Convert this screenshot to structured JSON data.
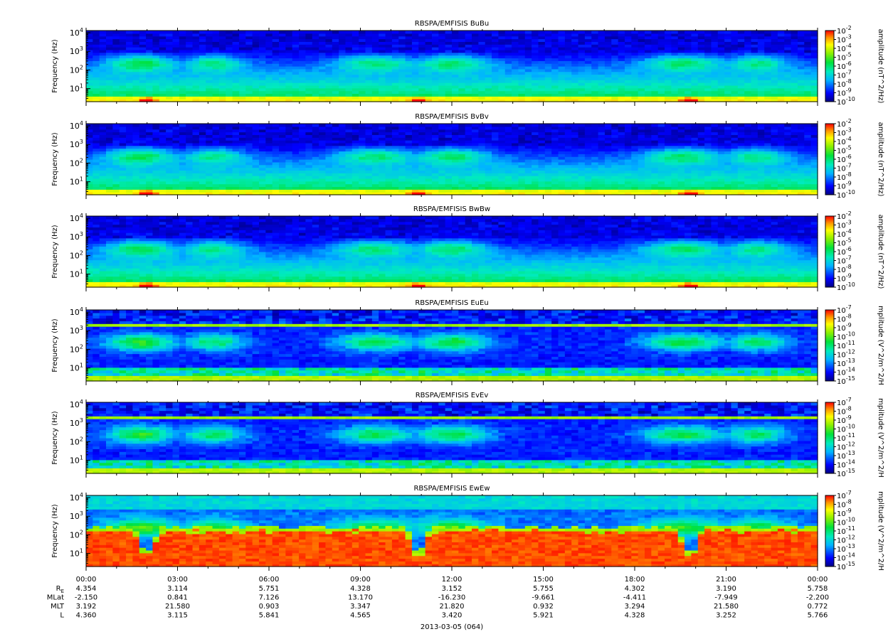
{
  "chart_data": {
    "type": "heatmap",
    "date_label": "2013-03-05 (064)",
    "x_ticks": [
      "00:00",
      "03:00",
      "06:00",
      "09:00",
      "12:00",
      "15:00",
      "18:00",
      "21:00",
      "00:00"
    ],
    "frequency_axis": {
      "label": "Frequency (Hz)",
      "scale": "log",
      "range": [
        2,
        13000
      ],
      "ticks": [
        {
          "value": 10,
          "exp": "1"
        },
        {
          "value": 100,
          "exp": "2"
        },
        {
          "value": 1000,
          "exp": "3"
        },
        {
          "value": 10000,
          "exp": "4"
        }
      ]
    },
    "ephemeris": [
      {
        "label": "R",
        "sub": "E",
        "values": [
          "4.354",
          "3.114",
          "5.751",
          "4.328",
          "3.152",
          "5.755",
          "4.302",
          "3.190",
          "5.758"
        ]
      },
      {
        "label": "MLat",
        "sub": "",
        "values": [
          "-2.150",
          "0.841",
          "7.126",
          "13.170",
          "-16.230",
          "-9.661",
          "-4.411",
          "-7.949",
          "-2.200"
        ]
      },
      {
        "label": "MLT",
        "sub": "",
        "values": [
          "3.192",
          "21.580",
          "0.903",
          "3.347",
          "21.820",
          "0.932",
          "3.294",
          "21.580",
          "0.772"
        ]
      },
      {
        "label": "L",
        "sub": "",
        "values": [
          "4.360",
          "3.115",
          "5.841",
          "4.565",
          "3.420",
          "5.921",
          "4.328",
          "3.252",
          "5.766"
        ]
      }
    ],
    "panels": [
      {
        "title": "RBSPA/EMFISIS  BuBu",
        "cbar_label": "amplitude (nT^2/Hz)",
        "cbar_exps": [
          "-2",
          "-3",
          "-4",
          "-5",
          "-6",
          "-7",
          "-8",
          "-9",
          "-10"
        ],
        "cbar_range": [
          -10,
          -2
        ],
        "kind": "B"
      },
      {
        "title": "RBSPA/EMFISIS  BvBv",
        "cbar_label": "amplitude (nT^2/Hz)",
        "cbar_exps": [
          "-2",
          "-3",
          "-4",
          "-5",
          "-6",
          "-7",
          "-8",
          "-9",
          "-10"
        ],
        "cbar_range": [
          -10,
          -2
        ],
        "kind": "B"
      },
      {
        "title": "RBSPA/EMFISIS  BwBw",
        "cbar_label": "amplitude (nT^2/Hz)",
        "cbar_exps": [
          "-2",
          "-3",
          "-4",
          "-5",
          "-6",
          "-7",
          "-8",
          "-9",
          "-10"
        ],
        "cbar_range": [
          -10,
          -2
        ],
        "kind": "B"
      },
      {
        "title": "RBSPA/EMFISIS  EuEu",
        "cbar_label": "mplitude (V^2/m^2/H",
        "cbar_exps": [
          "-7",
          "-8",
          "-9",
          "-10",
          "-11",
          "-12",
          "-13",
          "-14",
          "-15"
        ],
        "cbar_range": [
          -15,
          -7
        ],
        "kind": "E"
      },
      {
        "title": "RBSPA/EMFISIS  EvEv",
        "cbar_label": "mplitude (V^2/m^2/H",
        "cbar_exps": [
          "-7",
          "-8",
          "-9",
          "-10",
          "-11",
          "-12",
          "-13",
          "-14",
          "-15"
        ],
        "cbar_range": [
          -15,
          -7
        ],
        "kind": "E"
      },
      {
        "title": "RBSPA/EMFISIS  EwEw",
        "cbar_label": "mplitude (V^2/m^2/H",
        "cbar_exps": [
          "-7",
          "-8",
          "-9",
          "-10",
          "-11",
          "-12",
          "-13",
          "-14",
          "-15"
        ],
        "cbar_range": [
          -15,
          -7
        ],
        "kind": "Ew"
      }
    ]
  }
}
